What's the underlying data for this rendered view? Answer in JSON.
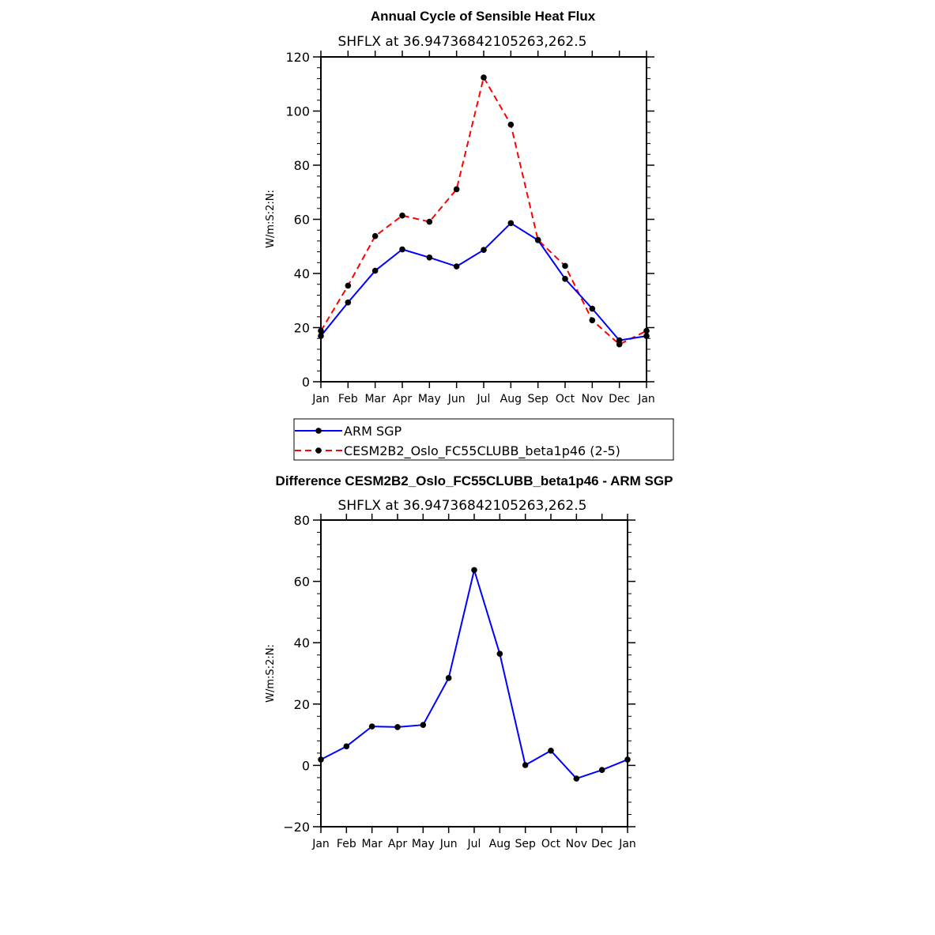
{
  "chart_data": [
    {
      "type": "line",
      "title": "Annual Cycle of Sensible Heat Flux",
      "subtitle": "SHFLX at 36.94736842105263,262.5",
      "ylabel": "W/m:S:2:N:",
      "xlabel": "",
      "categories": [
        "Jan",
        "Feb",
        "Mar",
        "Apr",
        "May",
        "Jun",
        "Jul",
        "Aug",
        "Sep",
        "Oct",
        "Nov",
        "Dec",
        "Jan"
      ],
      "ylim": [
        0,
        120
      ],
      "yticks": [
        0,
        20,
        40,
        60,
        80,
        100,
        120
      ],
      "grid": false,
      "legend_position": "bottom",
      "series": [
        {
          "name": "ARM SGP",
          "color": "#0000ff",
          "style": "solid",
          "values": [
            16.9,
            29.3,
            41.0,
            48.9,
            45.9,
            42.6,
            48.7,
            58.6,
            52.3,
            38.0,
            27.0,
            15.3,
            16.9
          ]
        },
        {
          "name": "CESM2B2_Oslo_FC55CLUBB_beta1p46 (2-5)",
          "color": "#ff0000",
          "style": "dashed",
          "values": [
            18.8,
            35.5,
            53.8,
            61.4,
            59.1,
            71.1,
            112.4,
            95.0,
            52.4,
            42.8,
            22.7,
            13.8,
            18.8
          ]
        }
      ]
    },
    {
      "type": "line",
      "title": "Difference CESM2B2_Oslo_FC55CLUBB_beta1p46 - ARM SGP",
      "subtitle": "SHFLX at 36.94736842105263,262.5",
      "ylabel": "W/m:S:2:N:",
      "xlabel": "",
      "categories": [
        "Jan",
        "Feb",
        "Mar",
        "Apr",
        "May",
        "Jun",
        "Jul",
        "Aug",
        "Sep",
        "Oct",
        "Nov",
        "Dec",
        "Jan"
      ],
      "ylim": [
        -20,
        80
      ],
      "yticks": [
        -20,
        0,
        20,
        40,
        60,
        80
      ],
      "grid": false,
      "series": [
        {
          "color": "#0000ff",
          "style": "solid",
          "values": [
            1.9,
            6.2,
            12.7,
            12.5,
            13.2,
            28.5,
            63.7,
            36.4,
            0.1,
            4.8,
            -4.3,
            -1.5,
            1.9
          ]
        }
      ]
    }
  ]
}
